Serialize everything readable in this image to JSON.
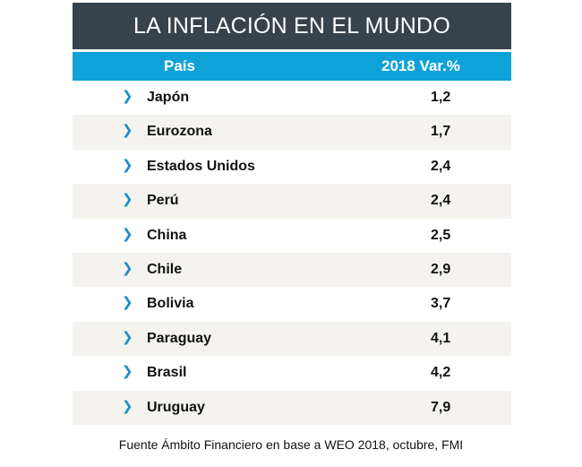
{
  "title": "LA INFLACIÓN EN EL MUNDO",
  "columns": [
    "País",
    "2018 Var.%"
  ],
  "rows": [
    {
      "country": "Japón",
      "value": "1,2"
    },
    {
      "country": "Eurozona",
      "value": "1,7"
    },
    {
      "country": "Estados Unidos",
      "value": "2,4"
    },
    {
      "country": "Perú",
      "value": "2,4"
    },
    {
      "country": "China",
      "value": "2,5"
    },
    {
      "country": "Chile",
      "value": "2,9"
    },
    {
      "country": "Bolivia",
      "value": "3,7"
    },
    {
      "country": "Paraguay",
      "value": "4,1"
    },
    {
      "country": "Brasil",
      "value": "4,2"
    },
    {
      "country": "Uruguay",
      "value": "7,9"
    }
  ],
  "row_icon": "chevron-right-icon",
  "footer": "Fuente Ámbito Financiero en base a WEO 2018, octubre, FMI",
  "colors": {
    "title_bg": "#36434c",
    "header_bg": "#0ea2d8",
    "alt_row": "#f4f3ef",
    "chevron": "#1b8fc4"
  }
}
